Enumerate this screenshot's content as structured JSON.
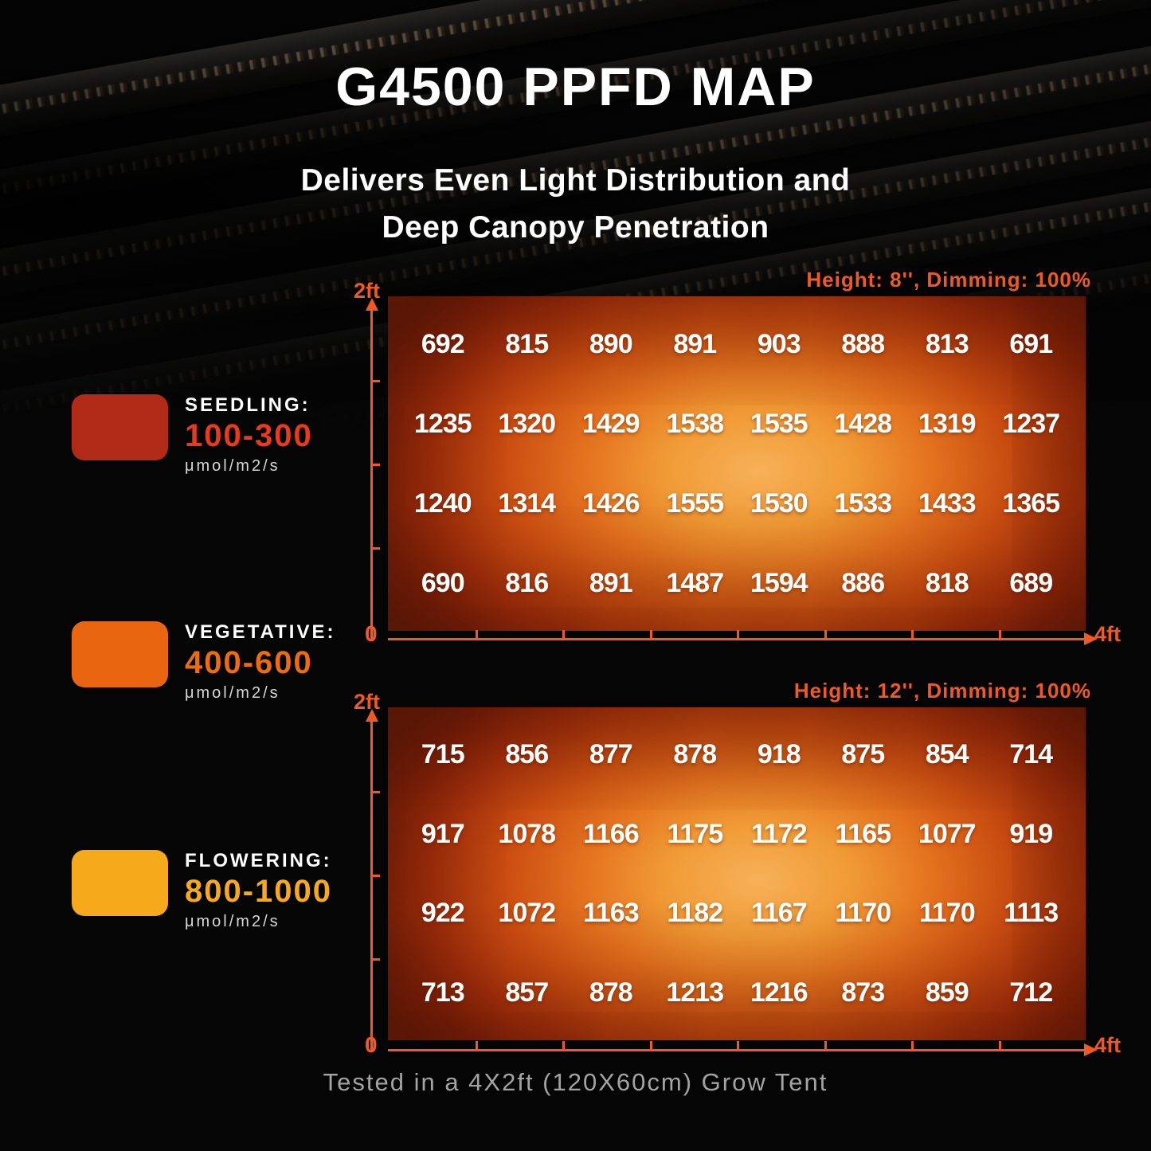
{
  "title": "G4500 PPFD MAP",
  "subtitle_line1": "Delivers Even Light Distribution and",
  "subtitle_line2": "Deep Canopy Penetration",
  "footer_note": "Tested in a 4X2ft (120X60cm) Grow Tent",
  "colors": {
    "accent_orange": "#f05a22",
    "seedling_swatch": "#b12a17",
    "seedling_range_text": "#e83a1e",
    "vegetative_swatch": "#ea650f",
    "vegetative_range_text": "#ee6c10",
    "flowering_swatch": "#f7a91c",
    "flowering_range_text": "#f7a91c",
    "heatmap_center": "#f7b158",
    "heatmap_edge": "#641a08",
    "footer_gray": "#a3a3a3"
  },
  "legend": {
    "items": [
      {
        "stage": "SEEDLING:",
        "range": "100-300",
        "unit": "μmol/m2/s"
      },
      {
        "stage": "VEGETATIVE:",
        "range": "400-600",
        "unit": "μmol/m2/s"
      },
      {
        "stage": "FLOWERING:",
        "range": "800-1000",
        "unit": "μmol/m2/s"
      }
    ]
  },
  "chart_data": [
    {
      "type": "heatmap",
      "title": "Height: 8'', Dimming: 100%",
      "unit": "μmol/m2/s",
      "columns": 8,
      "x_axis": {
        "origin_label": "0",
        "end_label": "4ft",
        "ticks": 7,
        "range_ft": [
          0,
          4
        ]
      },
      "y_axis": {
        "top_label": "2ft",
        "origin_label": "0",
        "ticks": 3,
        "range_ft": [
          0,
          2
        ]
      },
      "rows": [
        [
          692,
          815,
          890,
          891,
          903,
          888,
          813,
          691
        ],
        [
          1235,
          1320,
          1429,
          1538,
          1535,
          1428,
          1319,
          1237
        ],
        [
          1240,
          1314,
          1426,
          1555,
          1530,
          1533,
          1433,
          1365
        ],
        [
          690,
          816,
          891,
          1487,
          1594,
          886,
          818,
          689
        ]
      ]
    },
    {
      "type": "heatmap",
      "title": "Height: 12'', Dimming: 100%",
      "unit": "μmol/m2/s",
      "columns": 8,
      "x_axis": {
        "origin_label": "0",
        "end_label": "4ft",
        "ticks": 7,
        "range_ft": [
          0,
          4
        ]
      },
      "y_axis": {
        "top_label": "2ft",
        "origin_label": "0",
        "ticks": 3,
        "range_ft": [
          0,
          2
        ]
      },
      "rows": [
        [
          715,
          856,
          877,
          878,
          918,
          875,
          854,
          714
        ],
        [
          917,
          1078,
          1166,
          1175,
          1172,
          1165,
          1077,
          919
        ],
        [
          922,
          1072,
          1163,
          1182,
          1167,
          1170,
          1170,
          1113
        ],
        [
          713,
          857,
          878,
          1213,
          1216,
          873,
          859,
          712
        ]
      ]
    }
  ]
}
